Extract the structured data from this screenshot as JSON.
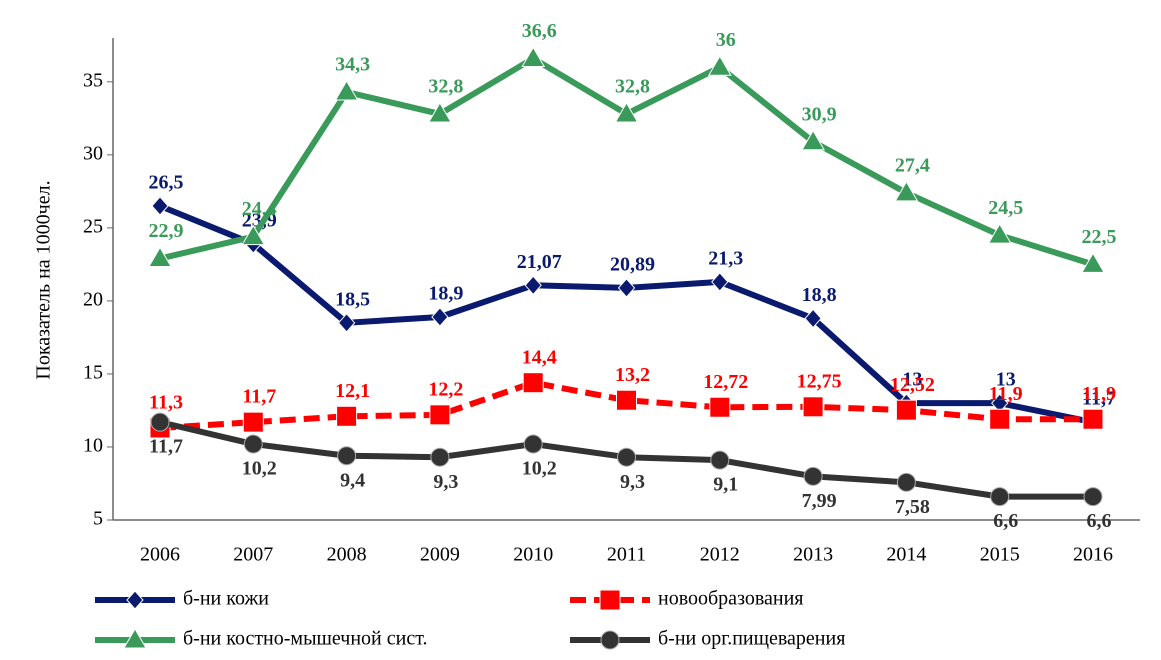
{
  "chart_data": {
    "type": "line",
    "y_label": "Показатель на 1000чел.",
    "categories": [
      "2006",
      "2007",
      "2008",
      "2009",
      "2010",
      "2011",
      "2012",
      "2013",
      "2014",
      "2015",
      "2016"
    ],
    "series": [
      {
        "name": "б-ни кожи",
        "color": "#0a1a6e",
        "marker": "diamond",
        "values": [
          26.5,
          23.9,
          18.5,
          18.9,
          21.07,
          20.89,
          21.3,
          18.8,
          13,
          13,
          11.7
        ],
        "value_labels": [
          "26,5",
          "23,9",
          "18,5",
          "18,9",
          "21,07",
          "20,89",
          "21,3",
          "18,8",
          "13",
          "13",
          "11,7"
        ]
      },
      {
        "name": "новообразования",
        "color": "#ff0000",
        "marker": "square",
        "dashed": true,
        "values": [
          11.3,
          11.7,
          12.1,
          12.2,
          14.4,
          13.2,
          12.72,
          12.75,
          12.52,
          11.9,
          11.9
        ],
        "value_labels": [
          "11,3",
          "11,7",
          "12,1",
          "12,2",
          "14,4",
          "13,2",
          "12,72",
          "12,75",
          "12,52",
          "11,9",
          "11,9"
        ]
      },
      {
        "name": "б-ни костно-мышечной сист.",
        "color": "#3a9a5a",
        "marker": "triangle",
        "values": [
          22.9,
          24.4,
          34.3,
          32.8,
          36.6,
          32.8,
          36,
          30.9,
          27.4,
          24.5,
          22.5
        ],
        "value_labels": [
          "22,9",
          "24,4",
          "34,3",
          "32,8",
          "36,6",
          "32,8",
          "36",
          "30,9",
          "27,4",
          "24,5",
          "22,5"
        ]
      },
      {
        "name": "б-ни орг.пищеварения",
        "color": "#333333",
        "marker": "circle",
        "values": [
          11.7,
          10.2,
          9.4,
          9.3,
          10.2,
          9.3,
          9.1,
          7.99,
          7.58,
          6.6,
          6.6
        ],
        "value_labels": [
          "11,7",
          "10,2",
          "9,4",
          "9,3",
          "10,2",
          "9,3",
          "9,1",
          "7,99",
          "7,58",
          "6,6",
          "6,6"
        ]
      }
    ],
    "ylim": [
      5,
      38
    ],
    "yticks": [
      5,
      10,
      15,
      20,
      25,
      30,
      35
    ],
    "grid": false
  }
}
